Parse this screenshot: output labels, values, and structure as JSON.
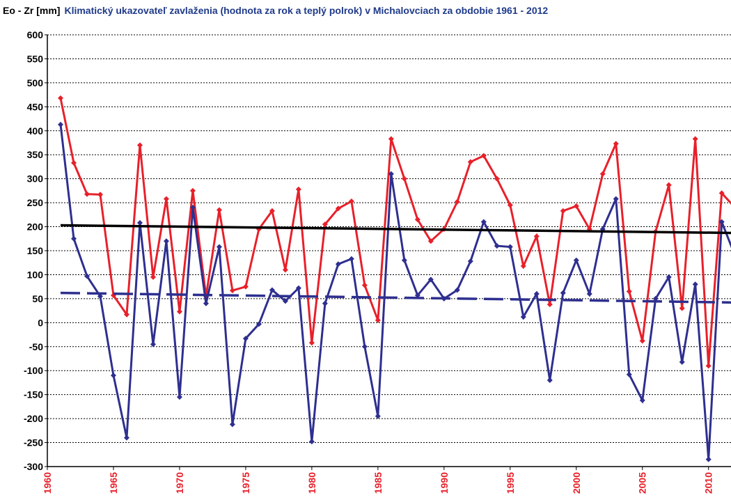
{
  "chart_data": {
    "type": "line",
    "title_prefix": "Eo - Zr [mm]",
    "title": "Klimatický ukazovateľ zavlaženia (hodnota za rok a teplý polrok) v Michalovciach za obdobie 1961 - 2012",
    "xlim": [
      1960,
      2011.7
    ],
    "xticks": [
      1960,
      1965,
      1970,
      1975,
      1980,
      1985,
      1990,
      1995,
      2000,
      2005,
      2010
    ],
    "ylim": [
      -300,
      600
    ],
    "yticks": [
      -300,
      -250,
      -200,
      -150,
      -100,
      -50,
      0,
      50,
      100,
      150,
      200,
      250,
      300,
      350,
      400,
      450,
      500,
      550,
      600
    ],
    "grid": true,
    "series": [
      {
        "color": "#e8202a",
        "marker": true,
        "x": [
          1961,
          1962,
          1963,
          1964,
          1965,
          1966,
          1967,
          1968,
          1969,
          1970,
          1971,
          1972,
          1973,
          1974,
          1975,
          1976,
          1977,
          1978,
          1979,
          1980,
          1981,
          1982,
          1983,
          1984,
          1985,
          1986,
          1987,
          1988,
          1989,
          1990,
          1991,
          1992,
          1993,
          1994,
          1995,
          1996,
          1997,
          1998,
          1999,
          2000,
          2001,
          2002,
          2003,
          2004,
          2005,
          2006,
          2007,
          2008,
          2009,
          2010,
          2011,
          2012
        ],
        "values": [
          468,
          333,
          268,
          267,
          57,
          17,
          370,
          95,
          258,
          23,
          275,
          55,
          235,
          67,
          75,
          195,
          233,
          110,
          278,
          -42,
          205,
          238,
          253,
          78,
          5,
          383,
          300,
          215,
          170,
          195,
          252,
          335,
          348,
          300,
          245,
          118,
          180,
          38,
          233,
          243,
          195,
          310,
          373,
          65,
          -38,
          190,
          287,
          30,
          383,
          -90,
          270,
          240
        ]
      },
      {
        "color": "#2e2f8f",
        "marker": true,
        "x": [
          1961,
          1962,
          1963,
          1964,
          1965,
          1966,
          1967,
          1968,
          1969,
          1970,
          1971,
          1972,
          1973,
          1974,
          1975,
          1976,
          1977,
          1978,
          1979,
          1980,
          1981,
          1982,
          1983,
          1984,
          1985,
          1986,
          1987,
          1988,
          1989,
          1990,
          1991,
          1992,
          1993,
          1994,
          1995,
          1996,
          1997,
          1998,
          1999,
          2000,
          2001,
          2002,
          2003,
          2004,
          2005,
          2006,
          2007,
          2008,
          2009,
          2010,
          2011,
          2012
        ],
        "values": [
          413,
          175,
          97,
          55,
          -110,
          -240,
          208,
          -45,
          170,
          -155,
          240,
          40,
          158,
          -212,
          -33,
          -3,
          68,
          45,
          72,
          -248,
          40,
          122,
          133,
          -50,
          -195,
          310,
          130,
          57,
          90,
          50,
          68,
          128,
          210,
          160,
          158,
          12,
          60,
          -120,
          62,
          130,
          60,
          195,
          258,
          -108,
          -162,
          50,
          95,
          -82,
          80,
          -285,
          210,
          140
        ]
      },
      {
        "color": "#000000",
        "marker": false,
        "x": [
          1961,
          2012
        ],
        "values": [
          203,
          187
        ]
      },
      {
        "color": "#2e2f8f",
        "marker": false,
        "dashed": true,
        "x": [
          1961,
          2012
        ],
        "values": [
          62,
          42
        ]
      }
    ]
  }
}
